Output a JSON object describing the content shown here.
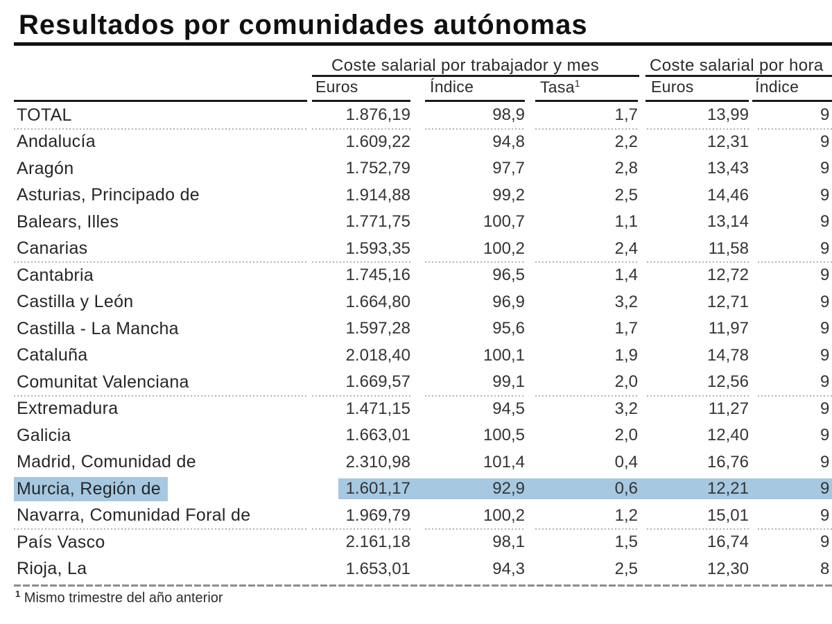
{
  "title": "Resultados por comunidades autónomas",
  "table": {
    "group_headers": [
      {
        "label": "Coste salarial por trabajador y mes"
      },
      {
        "label": "Coste salarial por hora"
      }
    ],
    "sub_headers": [
      {
        "label": "Euros"
      },
      {
        "label": "Índice"
      },
      {
        "label": "Tasa"
      },
      {
        "label": "Euros"
      },
      {
        "label": "Índice"
      }
    ],
    "tasa_superscript": "1",
    "rows": [
      {
        "region": "TOTAL",
        "euros_mes": "1.876,19",
        "indice_mes": "98,9",
        "tasa": "1,7",
        "euros_hora": "13,99",
        "indice_hora_partial": "9",
        "highlighted": false,
        "separator_after": true
      },
      {
        "region": "Andalucía",
        "euros_mes": "1.609,22",
        "indice_mes": "94,8",
        "tasa": "2,2",
        "euros_hora": "12,31",
        "indice_hora_partial": "9",
        "highlighted": false,
        "separator_after": false
      },
      {
        "region": "Aragón",
        "euros_mes": "1.752,79",
        "indice_mes": "97,7",
        "tasa": "2,8",
        "euros_hora": "13,43",
        "indice_hora_partial": "9",
        "highlighted": false,
        "separator_after": false
      },
      {
        "region": "Asturias, Principado de",
        "euros_mes": "1.914,88",
        "indice_mes": "99,2",
        "tasa": "2,5",
        "euros_hora": "14,46",
        "indice_hora_partial": "9",
        "highlighted": false,
        "separator_after": false
      },
      {
        "region": "Balears, Illes",
        "euros_mes": "1.771,75",
        "indice_mes": "100,7",
        "tasa": "1,1",
        "euros_hora": "13,14",
        "indice_hora_partial": "9",
        "highlighted": false,
        "separator_after": false
      },
      {
        "region": "Canarias",
        "euros_mes": "1.593,35",
        "indice_mes": "100,2",
        "tasa": "2,4",
        "euros_hora": "11,58",
        "indice_hora_partial": "9",
        "highlighted": false,
        "separator_after": true
      },
      {
        "region": "Cantabria",
        "euros_mes": "1.745,16",
        "indice_mes": "96,5",
        "tasa": "1,4",
        "euros_hora": "12,72",
        "indice_hora_partial": "9",
        "highlighted": false,
        "separator_after": false
      },
      {
        "region": "Castilla y León",
        "euros_mes": "1.664,80",
        "indice_mes": "96,9",
        "tasa": "3,2",
        "euros_hora": "12,71",
        "indice_hora_partial": "9",
        "highlighted": false,
        "separator_after": false
      },
      {
        "region": "Castilla - La Mancha",
        "euros_mes": "1.597,28",
        "indice_mes": "95,6",
        "tasa": "1,7",
        "euros_hora": "11,97",
        "indice_hora_partial": "9",
        "highlighted": false,
        "separator_after": false
      },
      {
        "region": "Cataluña",
        "euros_mes": "2.018,40",
        "indice_mes": "100,1",
        "tasa": "1,9",
        "euros_hora": "14,78",
        "indice_hora_partial": "9",
        "highlighted": false,
        "separator_after": false
      },
      {
        "region": "Comunitat Valenciana",
        "euros_mes": "1.669,57",
        "indice_mes": "99,1",
        "tasa": "2,0",
        "euros_hora": "12,56",
        "indice_hora_partial": "9",
        "highlighted": false,
        "separator_after": true
      },
      {
        "region": "Extremadura",
        "euros_mes": "1.471,15",
        "indice_mes": "94,5",
        "tasa": "3,2",
        "euros_hora": "11,27",
        "indice_hora_partial": "9",
        "highlighted": false,
        "separator_after": false
      },
      {
        "region": "Galicia",
        "euros_mes": "1.663,01",
        "indice_mes": "100,5",
        "tasa": "2,0",
        "euros_hora": "12,40",
        "indice_hora_partial": "9",
        "highlighted": false,
        "separator_after": false
      },
      {
        "region": "Madrid, Comunidad de",
        "euros_mes": "2.310,98",
        "indice_mes": "101,4",
        "tasa": "0,4",
        "euros_hora": "16,76",
        "indice_hora_partial": "9",
        "highlighted": false,
        "separator_after": false
      },
      {
        "region": "Murcia, Región de",
        "euros_mes": "1.601,17",
        "indice_mes": "92,9",
        "tasa": "0,6",
        "euros_hora": "12,21",
        "indice_hora_partial": "9",
        "highlighted": true,
        "separator_after": false
      },
      {
        "region": "Navarra, Comunidad Foral de",
        "euros_mes": "1.969,79",
        "indice_mes": "100,2",
        "tasa": "1,2",
        "euros_hora": "15,01",
        "indice_hora_partial": "9",
        "highlighted": false,
        "separator_after": true
      },
      {
        "region": "País Vasco",
        "euros_mes": "2.161,18",
        "indice_mes": "98,1",
        "tasa": "1,5",
        "euros_hora": "16,74",
        "indice_hora_partial": "9",
        "highlighted": false,
        "separator_after": false
      },
      {
        "region": "Rioja, La",
        "euros_mes": "1.653,01",
        "indice_mes": "94,3",
        "tasa": "2,5",
        "euros_hora": "12,30",
        "indice_hora_partial": "8",
        "highlighted": false,
        "separator_after": false
      }
    ],
    "footnote_superscript": "1",
    "footnote_text": "Mismo trimestre del año anterior"
  },
  "colors": {
    "highlight": "#a6c8e1",
    "rule": "#1a1a1a",
    "dotted_separator": "#b2b2b2"
  }
}
